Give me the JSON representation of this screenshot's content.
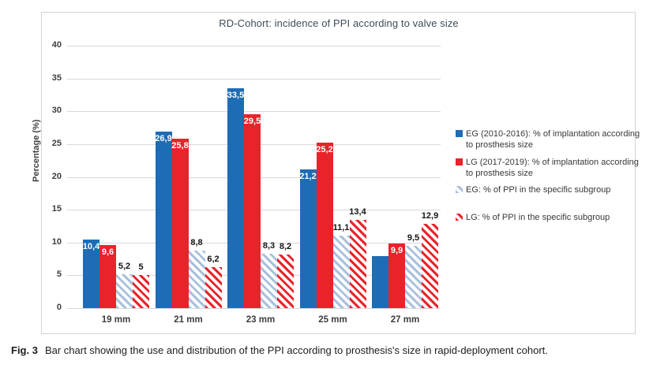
{
  "figure": {
    "caption_label": "Fig. 3",
    "caption_text": "Bar chart showing the use and distribution of the PPI according to prosthesis's size in rapid-deployment cohort."
  },
  "chart_data": {
    "type": "bar",
    "title": "RD-Cohort: incidence of PPI according to valve size",
    "xlabel": "",
    "ylabel": "Percentage (%)",
    "ylim": [
      0,
      40
    ],
    "yticks": [
      0,
      5,
      10,
      15,
      20,
      25,
      30,
      35,
      40
    ],
    "grid": true,
    "legend_position": "right",
    "categories": [
      "19 mm",
      "21 mm",
      "23 mm",
      "25 mm",
      "27 mm"
    ],
    "series": [
      {
        "key": "eg-implant",
        "name": "EG (2010-2016): % of implantation according to prosthesis size",
        "style": "solid",
        "color": "#1e6cb5",
        "values": [
          10.4,
          26.9,
          33.5,
          21.2,
          7.9
        ],
        "labels": [
          "10,4",
          "26,9",
          "33,5",
          "21,2",
          ""
        ]
      },
      {
        "key": "lg-implant",
        "name": "LG (2017-2019): % of implantation according to prosthesis size",
        "style": "solid",
        "color": "#ea222a",
        "values": [
          9.6,
          25.8,
          29.5,
          25.2,
          9.9
        ],
        "labels": [
          "9,6",
          "25,8",
          "29,5",
          "25,2",
          "9,9"
        ]
      },
      {
        "key": "eg-ppi",
        "name": "EG: % of PPI in the specific subgroup",
        "style": "hatched",
        "color": "#a9c0dd",
        "values": [
          5.2,
          8.8,
          8.3,
          11.1,
          9.5
        ],
        "labels": [
          "5,2",
          "8,8",
          "8,3",
          "11,1",
          "9,5"
        ]
      },
      {
        "key": "lg-ppi",
        "name": "LG: % of PPI in the specific subgroup",
        "style": "hatched",
        "color": "#e8232b",
        "values": [
          5,
          6.2,
          8.2,
          13.4,
          12.9
        ],
        "labels": [
          "5",
          "6,2",
          "8,2",
          "13,4",
          "12,9"
        ]
      }
    ]
  }
}
